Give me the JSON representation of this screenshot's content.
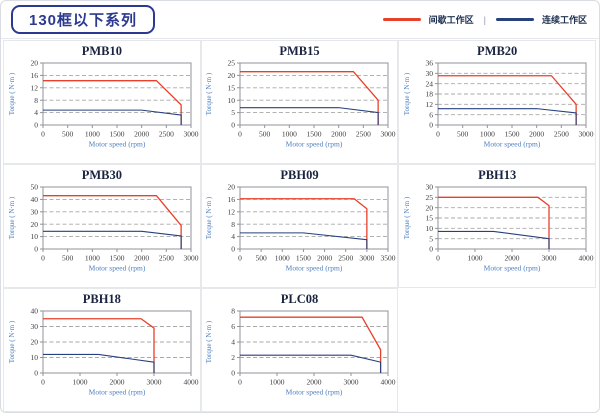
{
  "header": {
    "title": "130框以下系列",
    "legend_separator": "|",
    "legend": [
      {
        "name": "intermittent-zone",
        "label": "间歇工作区",
        "color": "#e8402a"
      },
      {
        "name": "continuous-zone",
        "label": "连续工作区",
        "color": "#27407e"
      }
    ]
  },
  "axes": {
    "xlabel": "Motor speed (rpm)",
    "ylabel": "Torque ( N·m )"
  },
  "colors": {
    "grid": "#a8a8a8",
    "plot_border": "#8f9399",
    "tick_text": "#3c3c3c",
    "axis_label": "#4d7fc0"
  },
  "chart_data": [
    {
      "type": "line",
      "title": "PMB10",
      "xlabel": "Motor speed (rpm)",
      "ylabel": "Torque ( N·m )",
      "xlim": [
        0,
        3000
      ],
      "xtick_step": 500,
      "ylim": [
        0,
        20
      ],
      "ytick_step": 4,
      "grid": "dashed-horizontal",
      "legend_position": "none",
      "series": [
        {
          "name": "间歇工作区",
          "color_key": "intermittent",
          "points": [
            [
              0,
              14.3
            ],
            [
              2300,
              14.3
            ],
            [
              2800,
              6.5
            ],
            [
              2800,
              0
            ]
          ]
        },
        {
          "name": "连续工作区",
          "color_key": "continuous",
          "points": [
            [
              0,
              4.8
            ],
            [
              2000,
              4.8
            ],
            [
              2800,
              3.2
            ],
            [
              2800,
              0
            ]
          ]
        }
      ]
    },
    {
      "type": "line",
      "title": "PMB15",
      "xlabel": "Motor speed (rpm)",
      "ylabel": "Torque ( N·m )",
      "xlim": [
        0,
        3000
      ],
      "xtick_step": 500,
      "ylim": [
        0,
        25
      ],
      "ytick_step": 5,
      "grid": "dashed-horizontal",
      "legend_position": "none",
      "series": [
        {
          "name": "间歇工作区",
          "color_key": "intermittent",
          "points": [
            [
              0,
              21.5
            ],
            [
              2300,
              21.5
            ],
            [
              2800,
              10
            ],
            [
              2800,
              0
            ]
          ]
        },
        {
          "name": "连续工作区",
          "color_key": "continuous",
          "points": [
            [
              0,
              7
            ],
            [
              2000,
              7
            ],
            [
              2800,
              5
            ],
            [
              2800,
              0
            ]
          ]
        }
      ]
    },
    {
      "type": "line",
      "title": "PMB20",
      "xlabel": "Motor speed (rpm)",
      "ylabel": "Torque ( N·m )",
      "xlim": [
        0,
        3000
      ],
      "xtick_step": 500,
      "ylim": [
        0,
        36
      ],
      "ytick_step": 6,
      "grid": "dashed-horizontal",
      "legend_position": "none",
      "series": [
        {
          "name": "间歇工作区",
          "color_key": "intermittent",
          "points": [
            [
              0,
              28.6
            ],
            [
              2300,
              28.6
            ],
            [
              2800,
              12
            ],
            [
              2800,
              0
            ]
          ]
        },
        {
          "name": "连续工作区",
          "color_key": "continuous",
          "points": [
            [
              0,
              9.5
            ],
            [
              2000,
              9.5
            ],
            [
              2800,
              7
            ],
            [
              2800,
              0
            ]
          ]
        }
      ]
    },
    {
      "type": "line",
      "title": "PMB30",
      "xlabel": "Motor speed (rpm)",
      "ylabel": "Torque ( N·m )",
      "xlim": [
        0,
        3000
      ],
      "xtick_step": 500,
      "ylim": [
        0,
        50
      ],
      "ytick_step": 10,
      "grid": "dashed-horizontal",
      "legend_position": "none",
      "series": [
        {
          "name": "间歇工作区",
          "color_key": "intermittent",
          "points": [
            [
              0,
              43
            ],
            [
              2300,
              43
            ],
            [
              2800,
              19
            ],
            [
              2800,
              0
            ]
          ]
        },
        {
          "name": "连续工作区",
          "color_key": "continuous",
          "points": [
            [
              0,
              14.3
            ],
            [
              2000,
              14.3
            ],
            [
              2800,
              10.5
            ],
            [
              2800,
              0
            ]
          ]
        }
      ]
    },
    {
      "type": "line",
      "title": "PBH09",
      "xlabel": "Motor speed (rpm)",
      "ylabel": "Torque ( N·m )",
      "xlim": [
        0,
        3500
      ],
      "xtick_step": 500,
      "ylim": [
        0,
        20
      ],
      "ytick_step": 4,
      "grid": "dashed-horizontal",
      "legend_position": "none",
      "series": [
        {
          "name": "间歇工作区",
          "color_key": "intermittent",
          "points": [
            [
              0,
              16.2
            ],
            [
              2700,
              16.2
            ],
            [
              3000,
              13
            ],
            [
              3000,
              0
            ]
          ]
        },
        {
          "name": "连续工作区",
          "color_key": "continuous",
          "points": [
            [
              0,
              5.2
            ],
            [
              1500,
              5.2
            ],
            [
              3000,
              3
            ],
            [
              3000,
              0
            ]
          ]
        }
      ]
    },
    {
      "type": "line",
      "title": "PBH13",
      "xlabel": "Motor speed (rpm)",
      "ylabel": "Torque ( N·m )",
      "xlim": [
        0,
        4000
      ],
      "xtick_step": 1000,
      "ylim": [
        0,
        30
      ],
      "ytick_step": 5,
      "grid": "dashed-horizontal",
      "legend_position": "none",
      "series": [
        {
          "name": "间歇工作区",
          "color_key": "intermittent",
          "points": [
            [
              0,
              25
            ],
            [
              2700,
              25
            ],
            [
              3000,
              21
            ],
            [
              3000,
              0
            ]
          ]
        },
        {
          "name": "连续工作区",
          "color_key": "continuous",
          "points": [
            [
              0,
              8.5
            ],
            [
              1500,
              8.5
            ],
            [
              3000,
              5
            ],
            [
              3000,
              0
            ]
          ]
        }
      ]
    },
    {
      "type": "line",
      "title": "PBH18",
      "xlabel": "Motor speed (rpm)",
      "ylabel": "Torque ( N·m )",
      "xlim": [
        0,
        4000
      ],
      "xtick_step": 1000,
      "ylim": [
        0,
        40
      ],
      "ytick_step": 10,
      "grid": "dashed-horizontal",
      "legend_position": "none",
      "series": [
        {
          "name": "间歇工作区",
          "color_key": "intermittent",
          "points": [
            [
              0,
              35
            ],
            [
              2650,
              35
            ],
            [
              3000,
              29
            ],
            [
              3000,
              0
            ]
          ]
        },
        {
          "name": "连续工作区",
          "color_key": "continuous",
          "points": [
            [
              0,
              12
            ],
            [
              1500,
              12
            ],
            [
              3000,
              7
            ],
            [
              3000,
              0
            ]
          ]
        }
      ]
    },
    {
      "type": "line",
      "title": "PLC08",
      "xlabel": "Motor speed (rpm)",
      "ylabel": "Torque ( N·m )",
      "xlim": [
        0,
        4000
      ],
      "xtick_step": 1000,
      "ylim": [
        0,
        8
      ],
      "ytick_step": 2,
      "grid": "dashed-horizontal",
      "legend_position": "none",
      "series": [
        {
          "name": "间歇工作区",
          "color_key": "intermittent",
          "points": [
            [
              0,
              7.2
            ],
            [
              3300,
              7.2
            ],
            [
              3800,
              3
            ],
            [
              3800,
              0
            ]
          ]
        },
        {
          "name": "连续工作区",
          "color_key": "continuous",
          "points": [
            [
              0,
              2.3
            ],
            [
              3000,
              2.3
            ],
            [
              3800,
              1.4
            ],
            [
              3800,
              0
            ]
          ]
        }
      ]
    }
  ]
}
